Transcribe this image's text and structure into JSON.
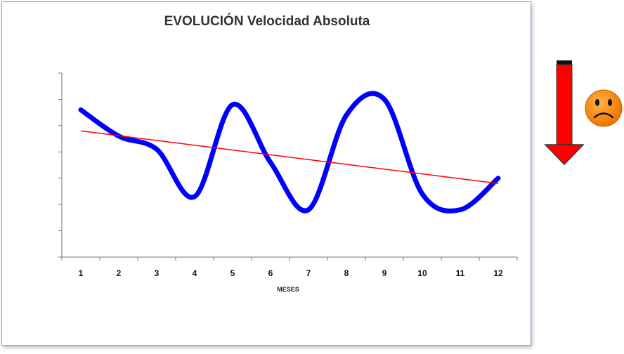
{
  "chart_data": {
    "type": "line",
    "title": "EVOLUCIÓN Velocidad Absoluta",
    "xlabel": "MESES",
    "ylabel": "",
    "x": [
      1,
      2,
      3,
      4,
      5,
      6,
      7,
      8,
      9,
      10,
      11,
      12
    ],
    "ylim": [
      0,
      7
    ],
    "grid": false,
    "series": [
      {
        "values": [
          5.6,
          4.6,
          4.1,
          2.3,
          5.8,
          3.6,
          1.8,
          5.4,
          6.0,
          2.4,
          1.8,
          3.0
        ],
        "color": "#0000ff",
        "style": "smooth"
      },
      {
        "values": [
          4.8,
          4.6,
          4.43,
          4.25,
          4.07,
          3.9,
          3.72,
          3.54,
          3.36,
          3.19,
          3.01,
          2.8
        ],
        "color": "#ff0000",
        "style": "trendline"
      }
    ]
  },
  "icons": {
    "trend_arrow": "down-arrow-icon",
    "mood": "sad-face-icon"
  },
  "colors": {
    "arrow": "#ff0000",
    "face": "#ff8c00",
    "frame": "#7f9cc0"
  }
}
